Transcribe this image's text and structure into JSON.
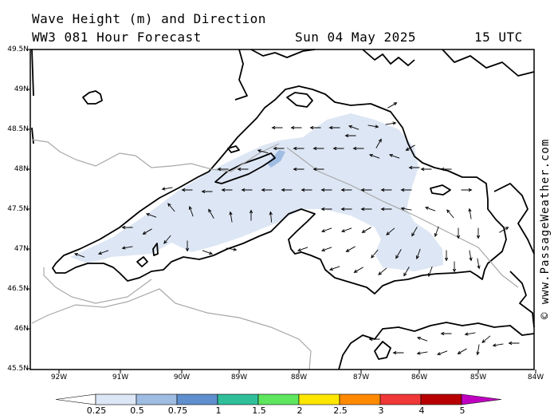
{
  "header": {
    "title": "Wave Height (m) and Direction",
    "model": "WW3 081 Hour Forecast",
    "date": "Sun 04 May 2025",
    "time": "15 UTC"
  },
  "credit": "© www.PassageWeather.com",
  "map": {
    "lat_labels": [
      "49.5N",
      "49N",
      "48.5N",
      "48N",
      "47.5N",
      "47N",
      "46.5N",
      "46N",
      "45.5N"
    ],
    "lon_labels": [
      "92W",
      "91W",
      "90W",
      "89W",
      "88W",
      "87W",
      "86W",
      "85W",
      "84W"
    ],
    "colors": {
      "water_low": "#dde6f4",
      "water_mid": "#aec6e4",
      "coast": "#000000",
      "border": "#a8a8a8"
    }
  },
  "legend": {
    "labels": [
      "0.25",
      "0.5",
      "0.75",
      "1",
      "1.5",
      "2",
      "2.5",
      "3",
      "4",
      "5"
    ],
    "colors": [
      "#ffffff",
      "#dde6f4",
      "#9fbde2",
      "#5f8fcd",
      "#2fc09a",
      "#5ee65e",
      "#ffe600",
      "#ff8a00",
      "#f03838",
      "#b80000",
      "#c000c0"
    ]
  }
}
